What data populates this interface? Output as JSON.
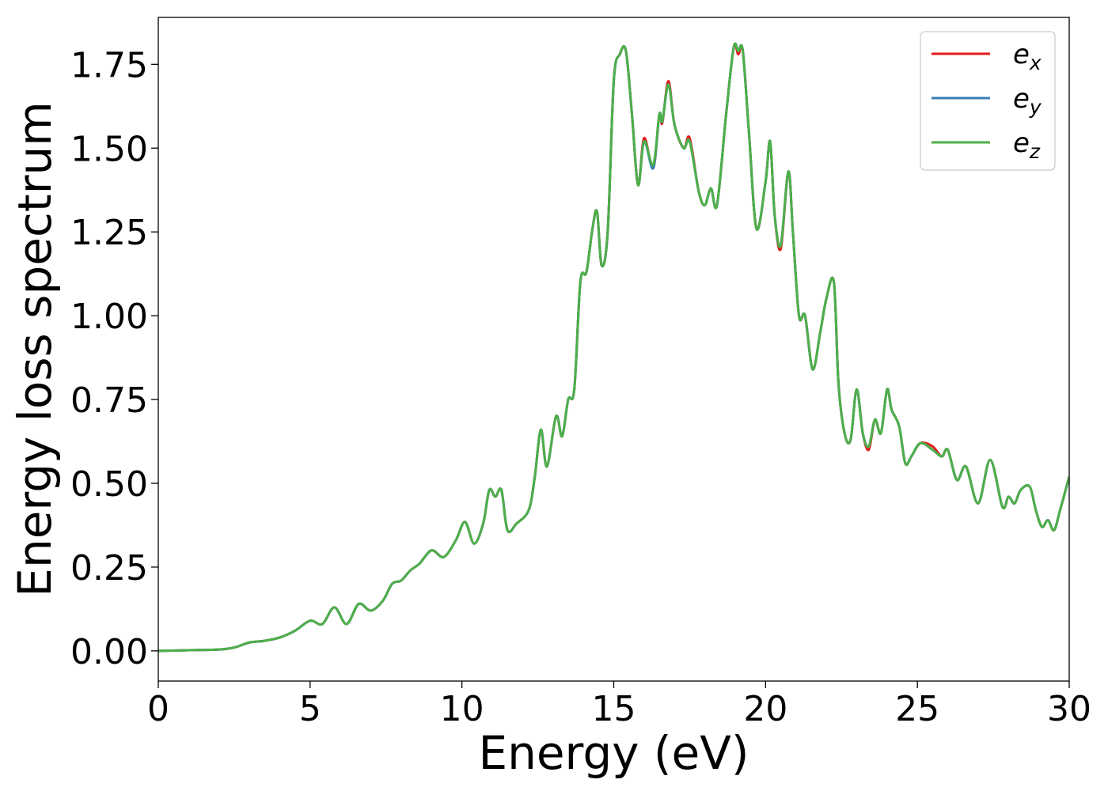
{
  "chart_data": {
    "type": "line",
    "title": "",
    "xlabel": "Energy (eV)",
    "ylabel": "Energy loss spectrum",
    "xlim": [
      0,
      30
    ],
    "ylim": [
      -0.09,
      1.89
    ],
    "xticks": [
      0,
      5,
      10,
      15,
      20,
      25,
      30
    ],
    "xtick_labels": [
      "0",
      "5",
      "10",
      "15",
      "20",
      "25",
      "30"
    ],
    "yticks": [
      0.0,
      0.25,
      0.5,
      0.75,
      1.0,
      1.25,
      1.5,
      1.75
    ],
    "ytick_labels": [
      "0.00",
      "0.25",
      "0.50",
      "0.75",
      "1.00",
      "1.25",
      "1.50",
      "1.75"
    ],
    "grid": false,
    "legend_position": "top-right",
    "x": [
      0,
      1,
      2,
      2.5,
      3,
      3.5,
      4,
      4.5,
      5,
      5.4,
      5.8,
      6.2,
      6.6,
      7.0,
      7.4,
      7.7,
      8.0,
      8.3,
      8.6,
      9.0,
      9.4,
      9.8,
      10.1,
      10.4,
      10.7,
      10.9,
      11.1,
      11.3,
      11.5,
      11.8,
      12.2,
      12.4,
      12.6,
      12.8,
      13.1,
      13.3,
      13.5,
      13.7,
      13.9,
      14.1,
      14.3,
      14.45,
      14.6,
      14.8,
      15.0,
      15.2,
      15.4,
      15.6,
      15.8,
      16.0,
      16.3,
      16.5,
      16.6,
      16.8,
      17.0,
      17.3,
      17.5,
      17.8,
      18.0,
      18.2,
      18.4,
      18.7,
      18.95,
      19.1,
      19.25,
      19.45,
      19.7,
      20.0,
      20.15,
      20.3,
      20.5,
      20.75,
      20.9,
      21.1,
      21.3,
      21.55,
      21.8,
      22.0,
      22.25,
      22.4,
      22.6,
      22.8,
      23.0,
      23.2,
      23.4,
      23.6,
      23.8,
      24.0,
      24.15,
      24.4,
      24.6,
      24.8,
      25.1,
      25.5,
      25.8,
      26.0,
      26.3,
      26.6,
      27.0,
      27.4,
      27.8,
      28.0,
      28.2,
      28.4,
      28.7,
      28.9,
      29.1,
      29.3,
      29.5,
      29.7,
      30.0
    ],
    "series": [
      {
        "name": "e_x",
        "label_base": "e",
        "label_sub": "x",
        "color": "#e41a1c",
        "values": [
          0.0,
          0.002,
          0.004,
          0.01,
          0.025,
          0.03,
          0.04,
          0.06,
          0.09,
          0.08,
          0.13,
          0.08,
          0.14,
          0.12,
          0.15,
          0.2,
          0.21,
          0.24,
          0.26,
          0.3,
          0.28,
          0.33,
          0.385,
          0.32,
          0.38,
          0.48,
          0.46,
          0.48,
          0.36,
          0.38,
          0.42,
          0.52,
          0.66,
          0.55,
          0.7,
          0.64,
          0.75,
          0.78,
          1.1,
          1.13,
          1.26,
          1.31,
          1.15,
          1.25,
          1.7,
          1.78,
          1.79,
          1.6,
          1.39,
          1.53,
          1.44,
          1.6,
          1.575,
          1.7,
          1.57,
          1.5,
          1.53,
          1.37,
          1.33,
          1.38,
          1.33,
          1.6,
          1.8,
          1.78,
          1.79,
          1.55,
          1.26,
          1.4,
          1.52,
          1.3,
          1.2,
          1.43,
          1.25,
          1.0,
          1.0,
          0.84,
          0.95,
          1.05,
          1.1,
          0.8,
          0.65,
          0.63,
          0.78,
          0.65,
          0.6,
          0.69,
          0.65,
          0.78,
          0.72,
          0.67,
          0.56,
          0.58,
          0.62,
          0.61,
          0.58,
          0.6,
          0.51,
          0.55,
          0.44,
          0.57,
          0.43,
          0.46,
          0.44,
          0.48,
          0.49,
          0.42,
          0.37,
          0.39,
          0.36,
          0.42,
          0.52
        ]
      },
      {
        "name": "e_y",
        "label_base": "e",
        "label_sub": "y",
        "color": "#377eb8",
        "values": [
          0.0,
          0.002,
          0.004,
          0.01,
          0.025,
          0.03,
          0.04,
          0.06,
          0.09,
          0.08,
          0.13,
          0.08,
          0.14,
          0.12,
          0.15,
          0.2,
          0.21,
          0.24,
          0.26,
          0.3,
          0.28,
          0.33,
          0.385,
          0.32,
          0.38,
          0.48,
          0.46,
          0.48,
          0.36,
          0.38,
          0.42,
          0.52,
          0.66,
          0.55,
          0.7,
          0.64,
          0.75,
          0.78,
          1.1,
          1.13,
          1.26,
          1.31,
          1.15,
          1.25,
          1.7,
          1.78,
          1.79,
          1.6,
          1.39,
          1.52,
          1.44,
          1.6,
          1.58,
          1.69,
          1.57,
          1.5,
          1.52,
          1.37,
          1.33,
          1.38,
          1.33,
          1.6,
          1.8,
          1.79,
          1.79,
          1.55,
          1.26,
          1.4,
          1.52,
          1.3,
          1.21,
          1.43,
          1.25,
          1.0,
          1.0,
          0.84,
          0.95,
          1.05,
          1.1,
          0.8,
          0.65,
          0.63,
          0.78,
          0.65,
          0.61,
          0.69,
          0.65,
          0.78,
          0.72,
          0.67,
          0.56,
          0.58,
          0.62,
          0.6,
          0.58,
          0.6,
          0.51,
          0.55,
          0.44,
          0.57,
          0.43,
          0.46,
          0.44,
          0.48,
          0.49,
          0.42,
          0.37,
          0.39,
          0.36,
          0.42,
          0.52
        ]
      },
      {
        "name": "e_z",
        "label_base": "e",
        "label_sub": "z",
        "color": "#4daf4a",
        "values": [
          0.0,
          0.002,
          0.004,
          0.01,
          0.025,
          0.03,
          0.04,
          0.06,
          0.09,
          0.08,
          0.13,
          0.08,
          0.14,
          0.12,
          0.15,
          0.2,
          0.21,
          0.24,
          0.26,
          0.3,
          0.28,
          0.33,
          0.385,
          0.32,
          0.38,
          0.48,
          0.46,
          0.48,
          0.36,
          0.38,
          0.42,
          0.52,
          0.66,
          0.55,
          0.7,
          0.64,
          0.75,
          0.78,
          1.1,
          1.13,
          1.26,
          1.31,
          1.15,
          1.25,
          1.7,
          1.78,
          1.79,
          1.6,
          1.39,
          1.52,
          1.45,
          1.6,
          1.58,
          1.69,
          1.57,
          1.5,
          1.52,
          1.37,
          1.33,
          1.38,
          1.33,
          1.6,
          1.8,
          1.79,
          1.79,
          1.55,
          1.26,
          1.4,
          1.52,
          1.3,
          1.21,
          1.43,
          1.25,
          1.0,
          1.0,
          0.84,
          0.95,
          1.05,
          1.1,
          0.8,
          0.65,
          0.63,
          0.78,
          0.65,
          0.61,
          0.69,
          0.65,
          0.78,
          0.72,
          0.67,
          0.56,
          0.58,
          0.62,
          0.6,
          0.58,
          0.6,
          0.51,
          0.55,
          0.44,
          0.57,
          0.43,
          0.46,
          0.44,
          0.48,
          0.49,
          0.42,
          0.37,
          0.39,
          0.36,
          0.42,
          0.52
        ]
      }
    ]
  }
}
